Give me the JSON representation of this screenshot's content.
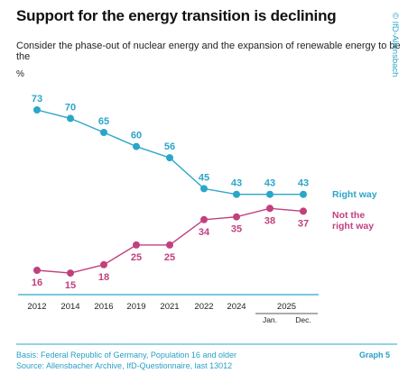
{
  "header": {
    "title": "Support for the energy transition is declining",
    "subtitle": "Consider the phase-out of nuclear energy and the expansion of renewable energy to be the",
    "unit": "%",
    "copyright": "© IfD-Allensbach"
  },
  "footer": {
    "basis": "Basis: Federal Republic of Germany, Population 16 and older",
    "source": "Source: Allensbacher Archive, IfD-Questionnaire, last 13012",
    "graph_label": "Graph 5"
  },
  "colors": {
    "series_right_way": "#2aa6c9",
    "series_not_right_way": "#c2407f",
    "axis": "#2aa6c9"
  },
  "chart_data": {
    "type": "line",
    "x": [
      "2012",
      "2014",
      "2016",
      "2019",
      "2021",
      "2022",
      "2024",
      "2025 Jan.",
      "2025 Dec."
    ],
    "tick_labels": [
      "2012",
      "2014",
      "2016",
      "2019",
      "2021",
      "2022",
      "2024",
      "Jan.",
      "Dec."
    ],
    "group_label": "2025",
    "series": [
      {
        "name": "Right way",
        "values": [
          73,
          70,
          65,
          60,
          56,
          45,
          43,
          43,
          43
        ]
      },
      {
        "name": "Not the right way",
        "label_lines": [
          "Not the",
          "right way"
        ],
        "values": [
          16,
          15,
          18,
          25,
          25,
          34,
          35,
          38,
          37
        ]
      }
    ],
    "ylim": [
      10,
      80
    ],
    "grid": false,
    "legend": "right of last point"
  }
}
